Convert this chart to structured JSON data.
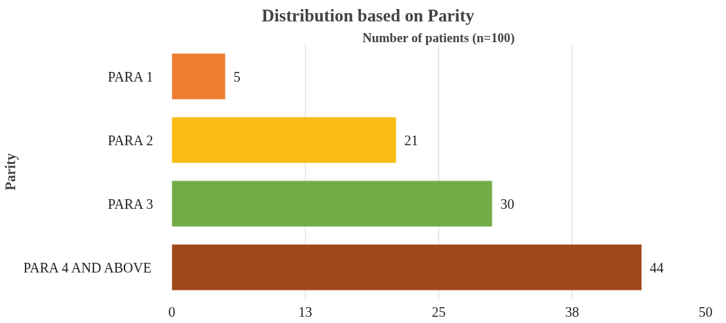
{
  "chart_data": {
    "type": "bar",
    "orientation": "horizontal",
    "title": "Distribution based on Parity",
    "xlabel": "Number of patients (n=100)",
    "ylabel": "Parity",
    "categories": [
      "PARA 1",
      "PARA 2",
      "PARA 3",
      "PARA 4 AND ABOVE"
    ],
    "values": [
      5,
      21,
      30,
      44
    ],
    "colors": [
      "#ed7d31",
      "#f9bc15",
      "#70ad47",
      "#a0491a"
    ],
    "xlim": [
      0,
      50
    ],
    "xticks": [
      0,
      {
        "value": 12.5,
        "label": "13"
      },
      25,
      {
        "value": 37.5,
        "label": "38"
      },
      50
    ],
    "grid": "x",
    "data_labels": true
  }
}
